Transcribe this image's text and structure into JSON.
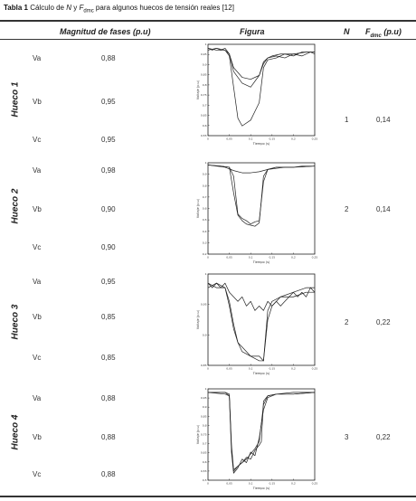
{
  "caption": {
    "label": "Tabla 1",
    "text_pre": " Cálculo de ",
    "n_symbol": "N",
    "text_mid": " y ",
    "f_symbol": "F",
    "f_sub": "dmc",
    "text_post": " para algunos huecos de tensión reales [12]"
  },
  "headers": {
    "magnitud": "Magnitud de fases (p.u)",
    "figura": "Figura",
    "n": "N",
    "f_symbol": "F",
    "f_sub": "dmc",
    "f_unit": " (p.u)"
  },
  "rows": [
    {
      "label": "Hueco 1",
      "phases": [
        {
          "name": "Va",
          "value": "0,88"
        },
        {
          "name": "Vb",
          "value": "0,95"
        },
        {
          "name": "Vc",
          "value": "0,95"
        }
      ],
      "n": "1",
      "f": "0,14",
      "plot": {
        "xlabel": "Tiempo (s)",
        "ylabel": "Voltaje (p.u)",
        "xticks": [
          "0",
          "0,05",
          "0,1",
          "0,15",
          "0,2",
          "0,25"
        ],
        "yticks": [
          "1",
          "0,95",
          "0,9",
          "0,85",
          "0,8",
          "0,75",
          "0,7",
          "0,65",
          "0,6",
          "0,55"
        ],
        "xlim": [
          0,
          0.25
        ],
        "ylim": [
          0.55,
          1.02
        ],
        "series": [
          {
            "x": [
              0,
              0.01,
              0.02,
              0.03,
              0.04,
              0.05,
              0.06,
              0.08,
              0.1,
              0.12,
              0.13,
              0.14,
              0.15,
              0.17,
              0.2,
              0.23,
              0.25
            ],
            "y": [
              1.0,
              0.99,
              1.0,
              0.99,
              1.0,
              0.97,
              0.88,
              0.82,
              0.8,
              0.86,
              0.93,
              0.95,
              0.96,
              0.97,
              0.97,
              0.98,
              0.98
            ]
          },
          {
            "x": [
              0,
              0.02,
              0.04,
              0.05,
              0.06,
              0.08,
              0.1,
              0.12,
              0.13,
              0.14,
              0.16,
              0.18,
              0.2,
              0.22,
              0.24,
              0.25
            ],
            "y": [
              1.0,
              0.99,
              0.99,
              0.97,
              0.9,
              0.85,
              0.84,
              0.86,
              0.92,
              0.95,
              0.96,
              0.95,
              0.97,
              0.96,
              0.98,
              0.97
            ]
          },
          {
            "x": [
              0,
              0.02,
              0.04,
              0.05,
              0.06,
              0.07,
              0.08,
              0.1,
              0.12,
              0.13,
              0.14,
              0.16,
              0.18,
              0.2,
              0.22,
              0.25
            ],
            "y": [
              0.99,
              1.0,
              0.99,
              0.96,
              0.8,
              0.64,
              0.6,
              0.63,
              0.72,
              0.9,
              0.94,
              0.95,
              0.97,
              0.96,
              0.98,
              0.98
            ]
          }
        ]
      }
    },
    {
      "label": "Hueco 2",
      "phases": [
        {
          "name": "Va",
          "value": "0,98"
        },
        {
          "name": "Vb",
          "value": "0,90"
        },
        {
          "name": "Vc",
          "value": "0,90"
        }
      ],
      "n": "2",
      "f": "0,14",
      "plot": {
        "xlabel": "Tiempo (s)",
        "ylabel": "Voltaje (p.u)",
        "xticks": [
          "0",
          "0,05",
          "0,1",
          "0,15",
          "0,2",
          "0,25"
        ],
        "yticks": [
          "1",
          "0,9",
          "0,8",
          "0,7",
          "0,6",
          "0,5",
          "0,4",
          "0,3",
          "0,2"
        ],
        "xlim": [
          0,
          0.25
        ],
        "ylim": [
          0.2,
          1.02
        ],
        "series": [
          {
            "x": [
              0,
              0.02,
              0.04,
              0.06,
              0.08,
              0.1,
              0.12,
              0.14,
              0.16,
              0.18,
              0.2,
              0.22,
              0.25
            ],
            "y": [
              1.0,
              0.99,
              0.98,
              0.95,
              0.93,
              0.93,
              0.94,
              0.96,
              0.97,
              0.98,
              0.98,
              0.99,
              0.99
            ]
          },
          {
            "x": [
              0,
              0.03,
              0.05,
              0.06,
              0.07,
              0.08,
              0.09,
              0.1,
              0.11,
              0.12,
              0.13,
              0.14,
              0.16,
              0.2,
              0.25
            ],
            "y": [
              1.0,
              0.99,
              0.98,
              0.9,
              0.56,
              0.52,
              0.5,
              0.47,
              0.49,
              0.5,
              0.85,
              0.96,
              0.98,
              0.98,
              0.99
            ]
          },
          {
            "x": [
              0,
              0.03,
              0.05,
              0.06,
              0.07,
              0.08,
              0.09,
              0.1,
              0.11,
              0.12,
              0.13,
              0.14,
              0.16,
              0.2,
              0.25
            ],
            "y": [
              1.0,
              0.99,
              0.98,
              0.75,
              0.55,
              0.5,
              0.47,
              0.46,
              0.45,
              0.48,
              0.9,
              0.96,
              0.98,
              0.98,
              0.99
            ]
          }
        ]
      }
    },
    {
      "label": "Hueco 3",
      "phases": [
        {
          "name": "Va",
          "value": "0,95"
        },
        {
          "name": "Vb",
          "value": "0,85"
        },
        {
          "name": "Vc",
          "value": "0,85"
        }
      ],
      "n": "2",
      "f": "0,22",
      "plot": {
        "xlabel": "Tiempo (s)",
        "ylabel": "Voltaje (p.u)",
        "xticks": [
          "0",
          "0,05",
          "0,1",
          "0,15",
          "0,2",
          "0,25"
        ],
        "yticks": [
          "1",
          "0,95",
          "0,9",
          "0,85"
        ],
        "xlim": [
          0,
          0.25
        ],
        "ylim": [
          0.82,
          1.02
        ],
        "series": [
          {
            "x": [
              0,
              0.01,
              0.02,
              0.03,
              0.04,
              0.05,
              0.06,
              0.07,
              0.08,
              0.09,
              0.1,
              0.11,
              0.12,
              0.13,
              0.14,
              0.15,
              0.16,
              0.17,
              0.18,
              0.19,
              0.2,
              0.21,
              0.22,
              0.23,
              0.24,
              0.25
            ],
            "y": [
              1.0,
              0.99,
              1.0,
              0.99,
              1.0,
              0.98,
              0.97,
              0.96,
              0.97,
              0.95,
              0.96,
              0.94,
              0.95,
              0.94,
              0.96,
              0.95,
              0.96,
              0.95,
              0.96,
              0.97,
              0.98,
              0.97,
              0.98,
              0.97,
              0.99,
              0.98
            ]
          },
          {
            "x": [
              0,
              0.02,
              0.04,
              0.05,
              0.06,
              0.07,
              0.08,
              0.1,
              0.12,
              0.13,
              0.14,
              0.15,
              0.17,
              0.2,
              0.23,
              0.25
            ],
            "y": [
              1.0,
              0.99,
              0.99,
              0.95,
              0.9,
              0.87,
              0.85,
              0.84,
              0.83,
              0.83,
              0.94,
              0.96,
              0.97,
              0.97,
              0.98,
              0.98
            ]
          },
          {
            "x": [
              0,
              0.02,
              0.04,
              0.05,
              0.06,
              0.07,
              0.08,
              0.1,
              0.12,
              0.13,
              0.14,
              0.15,
              0.17,
              0.2,
              0.23,
              0.25
            ],
            "y": [
              0.99,
              1.0,
              0.99,
              0.96,
              0.91,
              0.87,
              0.86,
              0.84,
              0.84,
              0.83,
              0.92,
              0.95,
              0.97,
              0.98,
              0.99,
              0.99
            ]
          }
        ]
      }
    },
    {
      "label": "Hueco 4",
      "phases": [
        {
          "name": "Va",
          "value": "0,88"
        },
        {
          "name": "Vb",
          "value": "0,88"
        },
        {
          "name": "Vc",
          "value": "0,88"
        }
      ],
      "n": "3",
      "f": "0,22",
      "plot": {
        "xlabel": "Tiempo (s)",
        "ylabel": "Voltaje (p.u)",
        "xticks": [
          "0",
          "0,05",
          "0,1",
          "0,15",
          "0,2",
          "0,25"
        ],
        "yticks": [
          "1",
          "0,95",
          "0,9",
          "0,85",
          "0,8",
          "0,75",
          "0,7",
          "0,65",
          "0,6",
          "0,55",
          "0,5"
        ],
        "xlim": [
          0,
          0.25
        ],
        "ylim": [
          0.5,
          1.02
        ],
        "series": [
          {
            "x": [
              0,
              0.04,
              0.05,
              0.055,
              0.06,
              0.07,
              0.08,
              0.09,
              0.1,
              0.11,
              0.12,
              0.13,
              0.14,
              0.16,
              0.2,
              0.25
            ],
            "y": [
              1.0,
              1.0,
              0.99,
              0.7,
              0.56,
              0.58,
              0.6,
              0.62,
              0.65,
              0.68,
              0.72,
              0.93,
              0.98,
              0.99,
              0.99,
              1.0
            ]
          },
          {
            "x": [
              0,
              0.04,
              0.05,
              0.055,
              0.06,
              0.07,
              0.08,
              0.09,
              0.1,
              0.11,
              0.12,
              0.13,
              0.14,
              0.16,
              0.2,
              0.25
            ],
            "y": [
              1.0,
              1.0,
              0.98,
              0.66,
              0.54,
              0.57,
              0.62,
              0.6,
              0.66,
              0.64,
              0.74,
              0.9,
              0.97,
              0.99,
              1.0,
              1.0
            ]
          },
          {
            "x": [
              0,
              0.04,
              0.05,
              0.055,
              0.06,
              0.07,
              0.08,
              0.09,
              0.1,
              0.11,
              0.12,
              0.125,
              0.13,
              0.14,
              0.16,
              0.2,
              0.25
            ],
            "y": [
              1.0,
              0.99,
              0.98,
              0.68,
              0.55,
              0.58,
              0.6,
              0.63,
              0.62,
              0.67,
              0.7,
              0.72,
              0.95,
              0.98,
              0.99,
              0.99,
              1.0
            ]
          }
        ]
      }
    }
  ]
}
